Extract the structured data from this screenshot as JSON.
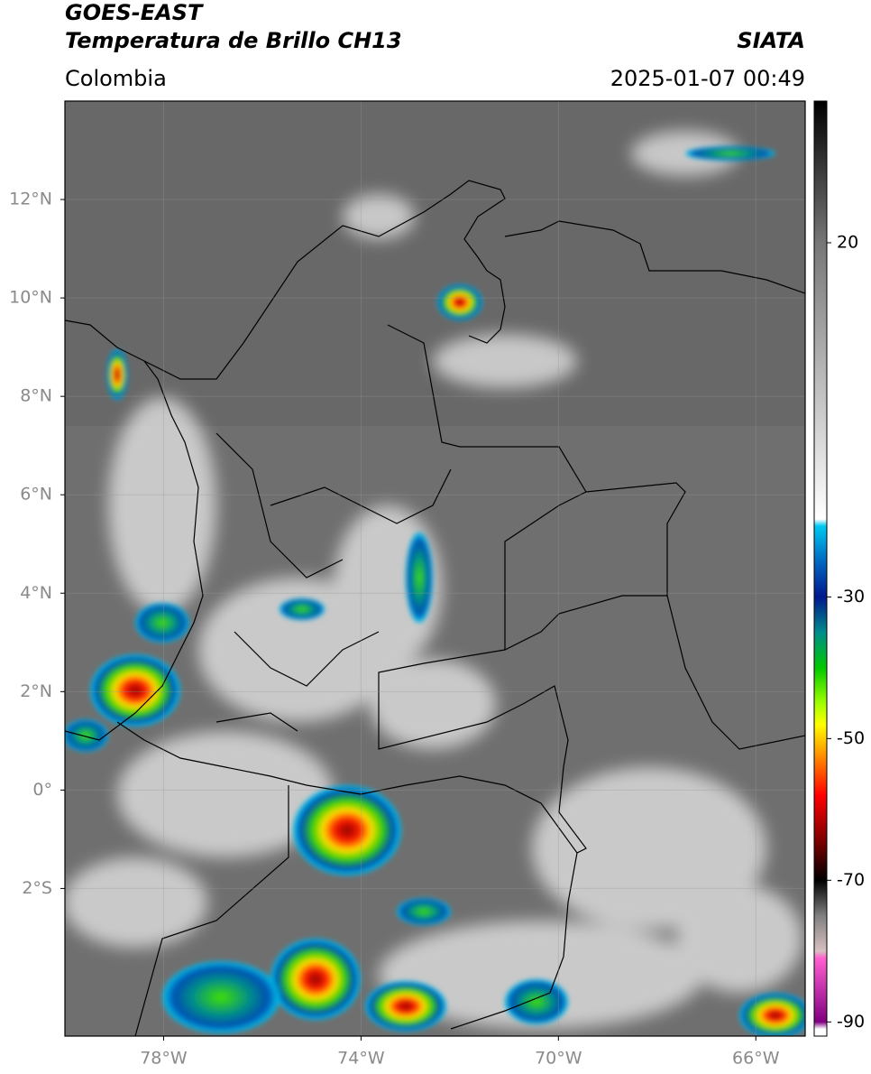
{
  "header": {
    "title": "GOES-EAST",
    "subtitle": "Temperatura de Brillo CH13",
    "source": "SIATA",
    "region": "Colombia",
    "timestamp": "2025-01-07 00:49"
  },
  "map": {
    "xlim": [
      -80,
      -65
    ],
    "ylim": [
      -5,
      14
    ],
    "xticks": [
      {
        "value": -78,
        "label": "78°W"
      },
      {
        "value": -74,
        "label": "74°W"
      },
      {
        "value": -70,
        "label": "70°W"
      },
      {
        "value": -66,
        "label": "66°W"
      }
    ],
    "yticks": [
      {
        "value": 12,
        "label": "12°N"
      },
      {
        "value": 10,
        "label": "10°N"
      },
      {
        "value": 8,
        "label": "8°N"
      },
      {
        "value": 6,
        "label": "6°N"
      },
      {
        "value": 4,
        "label": "4°N"
      },
      {
        "value": 2,
        "label": "2°N"
      },
      {
        "value": 0,
        "label": "0°"
      },
      {
        "value": -2,
        "label": "2°S"
      }
    ]
  },
  "colorbar": {
    "lim": [
      -92,
      40
    ],
    "ticks": [
      20,
      -30,
      -50,
      -70,
      -90
    ],
    "colormap": [
      {
        "value": 40,
        "color": "#000000"
      },
      {
        "value": 20,
        "color": "#777777"
      },
      {
        "value": -19,
        "color": "#ffffff"
      },
      {
        "value": -20,
        "color": "#00c8f0"
      },
      {
        "value": -25,
        "color": "#0068c0"
      },
      {
        "value": -30,
        "color": "#00188c"
      },
      {
        "value": -35,
        "color": "#008c8c"
      },
      {
        "value": -40,
        "color": "#00c800"
      },
      {
        "value": -45,
        "color": "#a0ff00"
      },
      {
        "value": -48,
        "color": "#ffff00"
      },
      {
        "value": -53,
        "color": "#ff8000"
      },
      {
        "value": -58,
        "color": "#ff0000"
      },
      {
        "value": -65,
        "color": "#700000"
      },
      {
        "value": -70,
        "color": "#000000"
      },
      {
        "value": -75,
        "color": "#808080"
      },
      {
        "value": -80,
        "color": "#d8c0c0"
      },
      {
        "value": -81,
        "color": "#ff60d0"
      },
      {
        "value": -90,
        "color": "#800080"
      },
      {
        "value": -91,
        "color": "#ffffff"
      }
    ]
  }
}
